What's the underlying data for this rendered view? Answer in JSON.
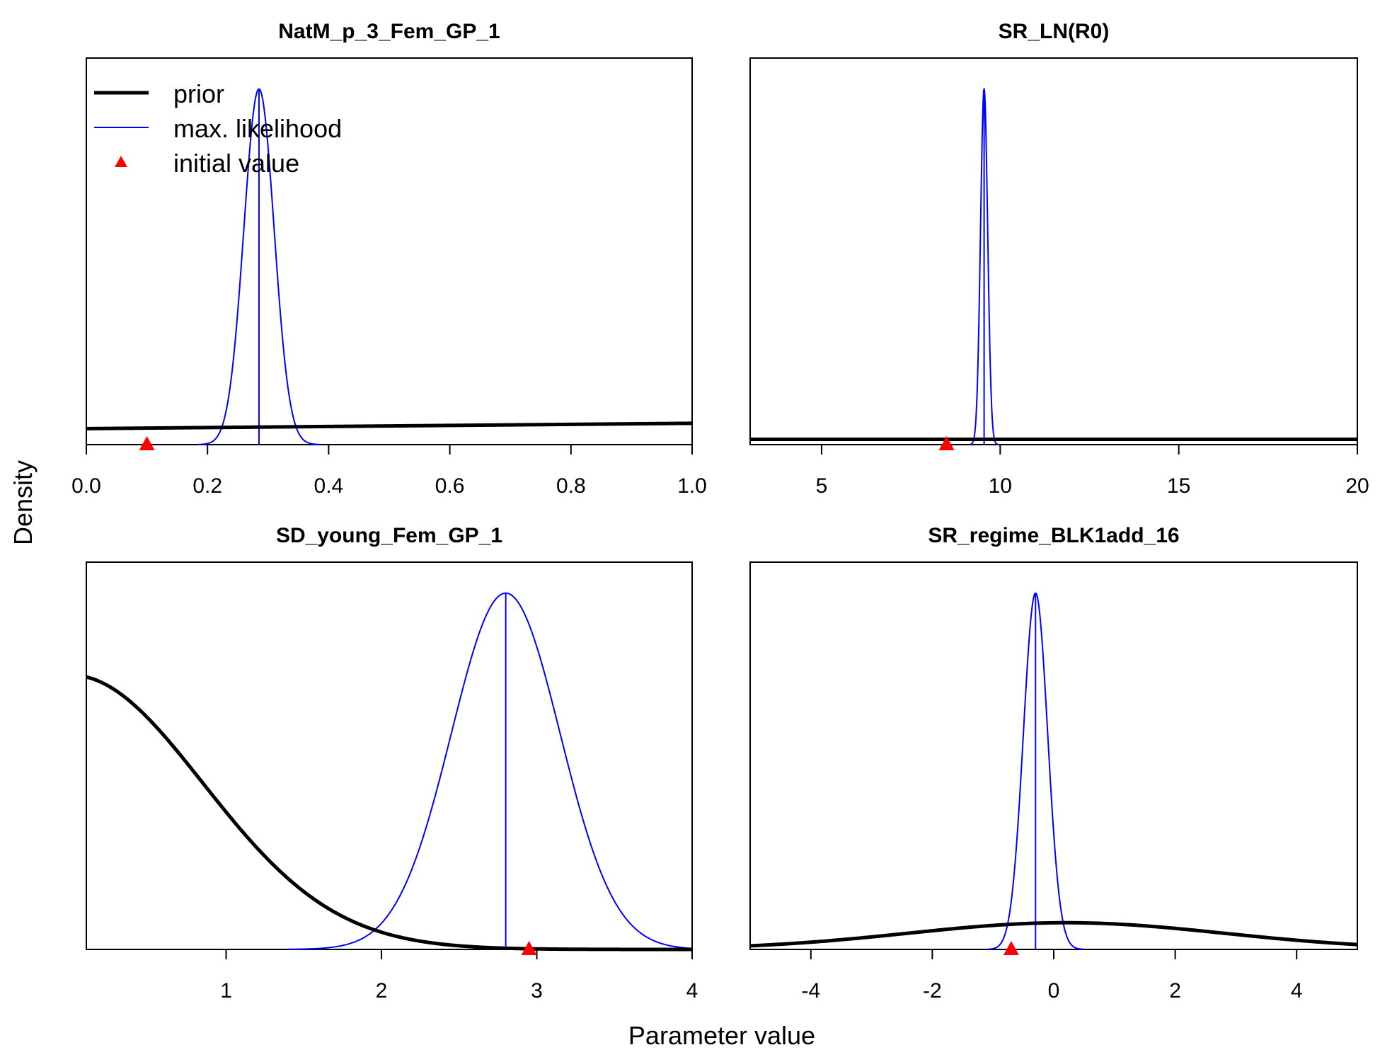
{
  "figure": {
    "xlabel": "Parameter value",
    "ylabel": "Density"
  },
  "legend": {
    "prior_label": "prior",
    "ml_label": "max. likelihood",
    "init_label": "initial value"
  },
  "colors": {
    "prior": "#000000",
    "max_likelihood": "#0000ff",
    "initial_value": "#ff0000"
  },
  "chart_data": [
    {
      "type": "line",
      "title": "NatM_p_3_Fem_GP_1",
      "xlim": [
        0,
        1
      ],
      "xticks": [
        0,
        0.2,
        0.4,
        0.6,
        0.8,
        1
      ],
      "xtick_labels": [
        "0.0",
        "0.2",
        "0.4",
        "0.6",
        "0.8",
        "1.0"
      ],
      "y_tick_labels_shown": false,
      "prior": {
        "shape": "lognormal-tail",
        "relative_height_at_xmin": 0.045,
        "relative_height_at_xmax": 0.06
      },
      "max_likelihood": {
        "shape": "normal",
        "mean": 0.285,
        "sd": 0.025
      },
      "initial_value": 0.1
    },
    {
      "type": "line",
      "title": "SR_LN(R0)",
      "xlim": [
        3,
        20
      ],
      "xticks": [
        5,
        10,
        15,
        20
      ],
      "xtick_labels": [
        "5",
        "10",
        "15",
        "20"
      ],
      "y_tick_labels_shown": false,
      "prior": {
        "shape": "flat",
        "relative_height": 0.015
      },
      "max_likelihood": {
        "shape": "normal",
        "mean": 9.55,
        "sd": 0.1
      },
      "initial_value": 8.5
    },
    {
      "type": "line",
      "title": "SD_young_Fem_GP_1",
      "xlim": [
        0.1,
        4
      ],
      "xticks": [
        1,
        2,
        3,
        4
      ],
      "xtick_labels": [
        "1",
        "2",
        "3",
        "4"
      ],
      "y_tick_labels_shown": false,
      "prior": {
        "shape": "normal",
        "mean": 0,
        "sd": 0.85,
        "relative_height_at_peak": 0.77
      },
      "max_likelihood": {
        "shape": "normal",
        "mean": 2.8,
        "sd": 0.35
      },
      "initial_value": 2.95
    },
    {
      "type": "line",
      "title": "SR_regime_BLK1add_16",
      "xlim": [
        -5,
        5
      ],
      "xticks": [
        -4,
        -2,
        0,
        2,
        4
      ],
      "xtick_labels": [
        "-4",
        "-2",
        "0",
        "2",
        "4"
      ],
      "y_tick_labels_shown": false,
      "prior": {
        "shape": "normal",
        "mean": 0.2,
        "sd": 2.6,
        "relative_height_at_peak": 0.075
      },
      "max_likelihood": {
        "shape": "normal",
        "mean": -0.3,
        "sd": 0.2
      },
      "initial_value": -0.7
    }
  ]
}
